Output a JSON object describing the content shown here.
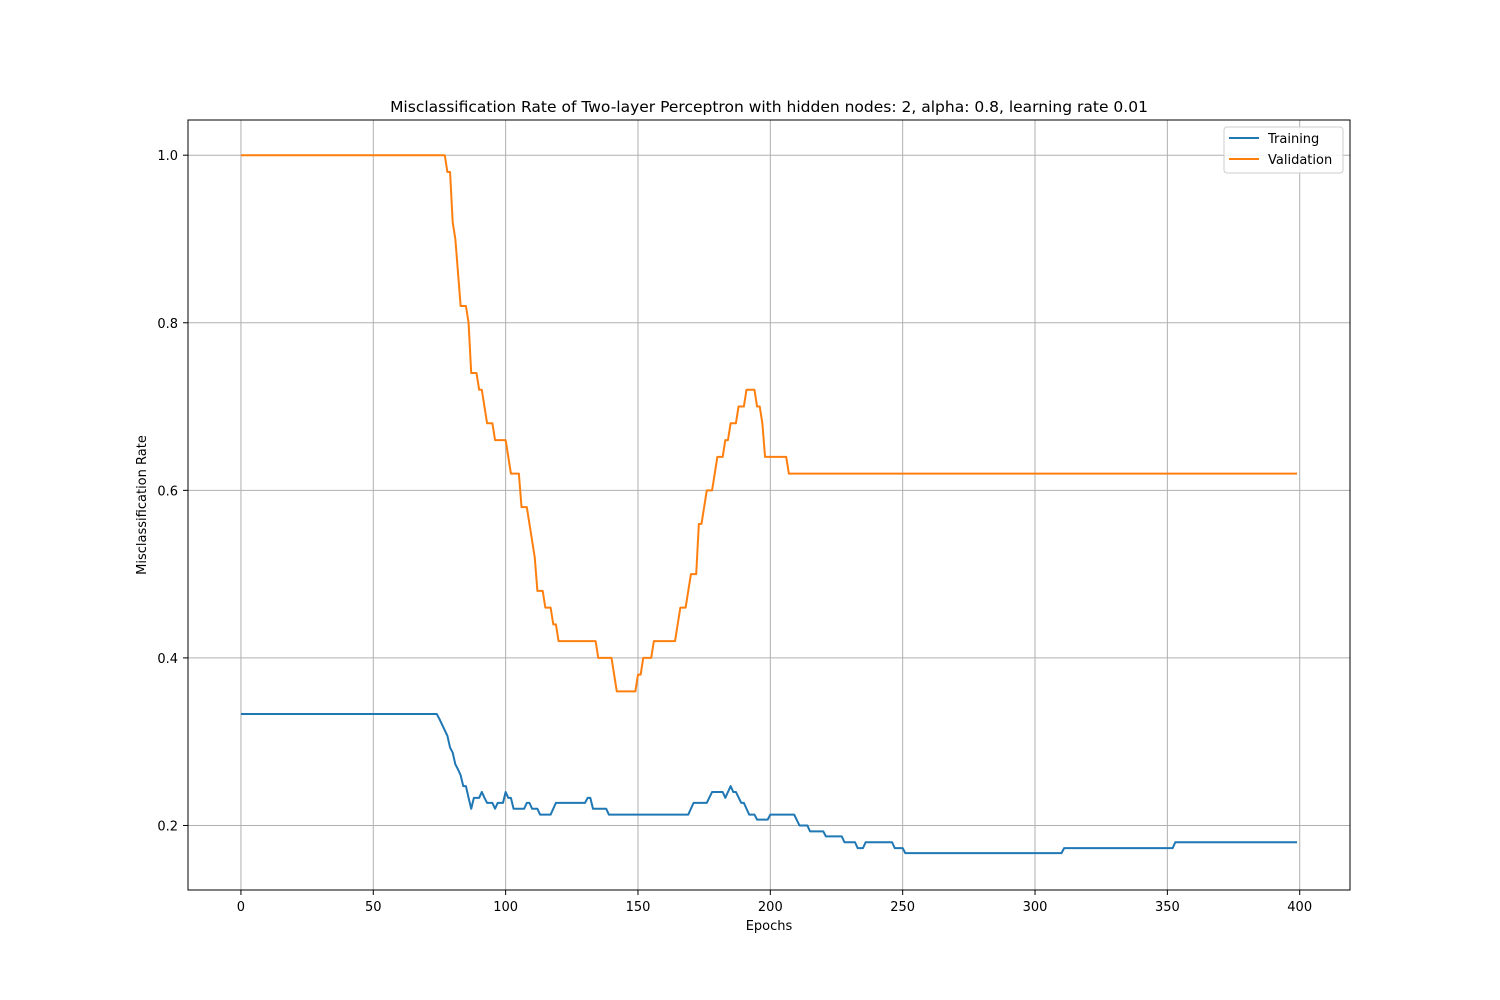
{
  "chart_data": {
    "type": "line",
    "title": "Misclassification Rate of Two-layer Perceptron with hidden nodes: 2, alpha: 0.8, learning rate 0.01",
    "xlabel": "Epochs",
    "ylabel": "Misclassification Rate",
    "xlim": [
      -20,
      419
    ],
    "ylim": [
      0.123,
      1.042
    ],
    "xticks": [
      0,
      50,
      100,
      150,
      200,
      250,
      300,
      350,
      400
    ],
    "yticks": [
      0.2,
      0.4,
      0.6,
      0.8,
      1.0
    ],
    "xtick_labels": [
      "0",
      "50",
      "100",
      "150",
      "200",
      "250",
      "300",
      "350",
      "400"
    ],
    "ytick_labels": [
      "0.2",
      "0.4",
      "0.6",
      "0.8",
      "1.0"
    ],
    "grid": true,
    "legend_position": "top-right",
    "series": [
      {
        "name": "Training",
        "color": "#1f77b4",
        "points": [
          [
            0,
            0.333
          ],
          [
            74,
            0.333
          ],
          [
            75,
            0.327
          ],
          [
            78,
            0.307
          ],
          [
            79,
            0.293
          ],
          [
            80,
            0.287
          ],
          [
            81,
            0.273
          ],
          [
            82,
            0.267
          ],
          [
            83,
            0.26
          ],
          [
            84,
            0.247
          ],
          [
            85,
            0.247
          ],
          [
            86,
            0.233
          ],
          [
            87,
            0.22
          ],
          [
            88,
            0.233
          ],
          [
            90,
            0.233
          ],
          [
            91,
            0.24
          ],
          [
            92,
            0.233
          ],
          [
            93,
            0.227
          ],
          [
            95,
            0.227
          ],
          [
            96,
            0.22
          ],
          [
            97,
            0.227
          ],
          [
            99,
            0.227
          ],
          [
            100,
            0.24
          ],
          [
            101,
            0.233
          ],
          [
            102,
            0.233
          ],
          [
            103,
            0.22
          ],
          [
            107,
            0.22
          ],
          [
            108,
            0.227
          ],
          [
            109,
            0.227
          ],
          [
            110,
            0.22
          ],
          [
            112,
            0.22
          ],
          [
            113,
            0.213
          ],
          [
            117,
            0.213
          ],
          [
            119,
            0.227
          ],
          [
            130,
            0.227
          ],
          [
            131,
            0.233
          ],
          [
            132,
            0.233
          ],
          [
            133,
            0.22
          ],
          [
            138,
            0.22
          ],
          [
            139,
            0.213
          ],
          [
            169,
            0.213
          ],
          [
            171,
            0.227
          ],
          [
            176,
            0.227
          ],
          [
            178,
            0.24
          ],
          [
            182,
            0.24
          ],
          [
            183,
            0.233
          ],
          [
            185,
            0.247
          ],
          [
            186,
            0.24
          ],
          [
            187,
            0.24
          ],
          [
            189,
            0.227
          ],
          [
            190,
            0.227
          ],
          [
            192,
            0.213
          ],
          [
            194,
            0.213
          ],
          [
            195,
            0.207
          ],
          [
            199,
            0.207
          ],
          [
            200,
            0.213
          ],
          [
            209,
            0.213
          ],
          [
            211,
            0.2
          ],
          [
            214,
            0.2
          ],
          [
            215,
            0.193
          ],
          [
            220,
            0.193
          ],
          [
            221,
            0.187
          ],
          [
            227,
            0.187
          ],
          [
            228,
            0.18
          ],
          [
            232,
            0.18
          ],
          [
            233,
            0.173
          ],
          [
            235,
            0.173
          ],
          [
            236,
            0.18
          ],
          [
            246,
            0.18
          ],
          [
            247,
            0.173
          ],
          [
            250,
            0.173
          ],
          [
            251,
            0.167
          ],
          [
            310,
            0.167
          ],
          [
            311,
            0.173
          ],
          [
            352,
            0.173
          ],
          [
            353,
            0.18
          ],
          [
            399,
            0.18
          ]
        ]
      },
      {
        "name": "Validation",
        "color": "#ff7f0e",
        "points": [
          [
            0,
            1.0
          ],
          [
            77,
            1.0
          ],
          [
            78,
            0.98
          ],
          [
            79,
            0.98
          ],
          [
            80,
            0.92
          ],
          [
            81,
            0.9
          ],
          [
            82,
            0.86
          ],
          [
            83,
            0.82
          ],
          [
            85,
            0.82
          ],
          [
            86,
            0.8
          ],
          [
            87,
            0.74
          ],
          [
            89,
            0.74
          ],
          [
            90,
            0.72
          ],
          [
            91,
            0.72
          ],
          [
            92,
            0.7
          ],
          [
            93,
            0.68
          ],
          [
            95,
            0.68
          ],
          [
            96,
            0.66
          ],
          [
            100,
            0.66
          ],
          [
            101,
            0.64
          ],
          [
            102,
            0.62
          ],
          [
            105,
            0.62
          ],
          [
            106,
            0.58
          ],
          [
            108,
            0.58
          ],
          [
            109,
            0.56
          ],
          [
            110,
            0.54
          ],
          [
            111,
            0.52
          ],
          [
            112,
            0.48
          ],
          [
            114,
            0.48
          ],
          [
            115,
            0.46
          ],
          [
            117,
            0.46
          ],
          [
            118,
            0.44
          ],
          [
            119,
            0.44
          ],
          [
            120,
            0.42
          ],
          [
            134,
            0.42
          ],
          [
            135,
            0.4
          ],
          [
            140,
            0.4
          ],
          [
            141,
            0.38
          ],
          [
            142,
            0.36
          ],
          [
            149,
            0.36
          ],
          [
            150,
            0.38
          ],
          [
            151,
            0.38
          ],
          [
            152,
            0.4
          ],
          [
            155,
            0.4
          ],
          [
            156,
            0.42
          ],
          [
            164,
            0.42
          ],
          [
            165,
            0.44
          ],
          [
            166,
            0.46
          ],
          [
            168,
            0.46
          ],
          [
            169,
            0.48
          ],
          [
            170,
            0.5
          ],
          [
            172,
            0.5
          ],
          [
            173,
            0.56
          ],
          [
            174,
            0.56
          ],
          [
            175,
            0.58
          ],
          [
            176,
            0.6
          ],
          [
            178,
            0.6
          ],
          [
            179,
            0.62
          ],
          [
            180,
            0.64
          ],
          [
            182,
            0.64
          ],
          [
            183,
            0.66
          ],
          [
            184,
            0.66
          ],
          [
            185,
            0.68
          ],
          [
            187,
            0.68
          ],
          [
            188,
            0.7
          ],
          [
            190,
            0.7
          ],
          [
            191,
            0.72
          ],
          [
            194,
            0.72
          ],
          [
            195,
            0.7
          ],
          [
            196,
            0.7
          ],
          [
            197,
            0.68
          ],
          [
            198,
            0.64
          ],
          [
            206,
            0.64
          ],
          [
            207,
            0.62
          ],
          [
            399,
            0.62
          ]
        ]
      }
    ]
  }
}
